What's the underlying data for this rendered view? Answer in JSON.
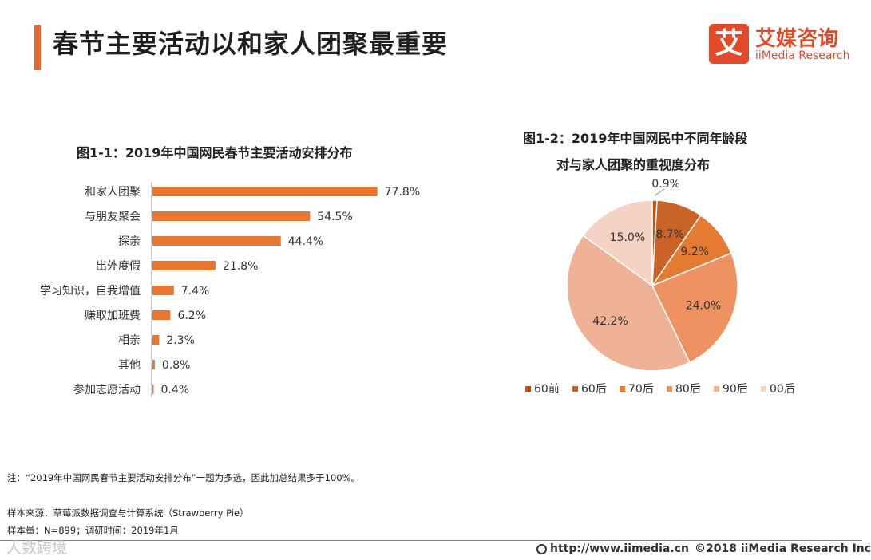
{
  "header": {
    "title": "春节主要活动以和家人团聚最重要"
  },
  "logo": {
    "mark": "艾",
    "name_cn": "艾媒咨询",
    "name_en": "iiMedia Research"
  },
  "colors": {
    "accent": "#e9662c",
    "bar": "#e9762f",
    "pie": [
      "#b8581f",
      "#c96327",
      "#e57a33",
      "#ee9262",
      "#f0b297",
      "#f4d3c4"
    ]
  },
  "chart_data": [
    {
      "type": "bar",
      "orientation": "horizontal",
      "title": "图1-1：2019年中国网民春节主要活动安排分布",
      "categories": [
        "和家人团聚",
        "与朋友聚会",
        "探亲",
        "出外度假",
        "学习知识，自我增值",
        "赚取加班费",
        "相亲",
        "其他",
        "参加志愿活动"
      ],
      "values": [
        77.8,
        54.5,
        44.4,
        21.8,
        7.4,
        6.2,
        2.3,
        0.8,
        0.4
      ],
      "value_labels": [
        "77.8%",
        "54.5%",
        "44.4%",
        "21.8%",
        "7.4%",
        "6.2%",
        "2.3%",
        "0.8%",
        "0.4%"
      ],
      "xlim": [
        0,
        100
      ],
      "unit": "%"
    },
    {
      "type": "pie",
      "title_line1": "图1-2：2019年中国网民中不同年龄段",
      "title_line2": "对与家人团聚的重视度分布",
      "categories": [
        "60前",
        "60后",
        "70后",
        "80后",
        "90后",
        "00后"
      ],
      "values": [
        0.9,
        8.7,
        9.2,
        24.0,
        42.2,
        15.0
      ],
      "value_labels": [
        "0.9%",
        "8.7%",
        "9.2%",
        "24.0%",
        "42.2%",
        "15.0%"
      ],
      "legend_position": "bottom"
    }
  ],
  "notes": {
    "note": "注：“2019年中国网民春节主要活动安排分布”一题为多选，因此加总结果多于100%。",
    "source": "样本来源：草莓派数据调查与计算系统（Strawberry Pie）",
    "sample": "样本量：N=899；调研时间：2019年1月"
  },
  "footer": {
    "url": "http://www.iimedia.cn",
    "copyright": "©2018  iiMedia Research  Inc",
    "watermark": "人数跨境"
  }
}
